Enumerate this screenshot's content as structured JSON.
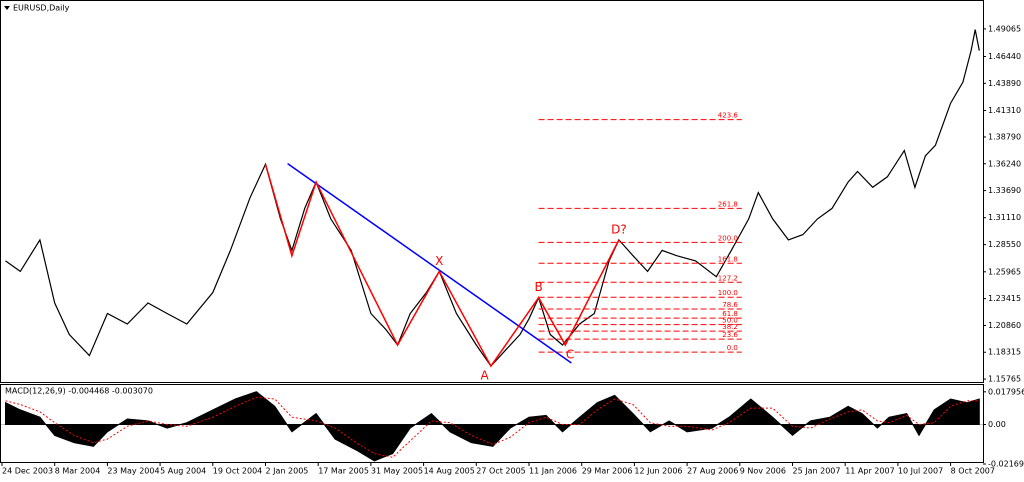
{
  "chart_data": [
    {
      "type": "line",
      "title": "EURUSD,Daily",
      "ylim": [
        1.1539,
        1.5172
      ],
      "yticks": [
        1.49065,
        {
          "value": 1.4644,
          "label": "1.46440"
        },
        {
          "value": 1.4389,
          "label": "1.43890"
        },
        {
          "value": 1.4131,
          "label": "1.41310"
        },
        {
          "value": 1.3879,
          "label": "1.38790"
        },
        {
          "value": 1.3624,
          "label": "1.36240"
        },
        {
          "value": 1.3369,
          "label": "1.33690"
        },
        {
          "value": 1.3111,
          "label": "1.31110"
        },
        {
          "value": 1.2855,
          "label": "1.28550"
        },
        1.25965,
        1.23415,
        {
          "value": 1.2086,
          "label": "1.20860"
        },
        1.18315,
        1.15765
      ],
      "xticks": [
        {
          "value": "2003-12-24",
          "label": "24 Dec 2003"
        },
        {
          "value": "2004-03-08",
          "label": "8 Mar 2004"
        },
        {
          "value": "2004-05-23",
          "label": "23 May 2004"
        },
        {
          "value": "2004-08-05",
          "label": "5 Aug 2004"
        },
        {
          "value": "2004-10-19",
          "label": "19 Oct 2004"
        },
        {
          "value": "2005-01-02",
          "label": "2 Jan 2005"
        },
        {
          "value": "2005-03-17",
          "label": "17 Mar 2005"
        },
        {
          "value": "2005-05-31",
          "label": "31 May 2005"
        },
        {
          "value": "2005-08-14",
          "label": "14 Aug 2005"
        },
        {
          "value": "2005-10-27",
          "label": "27 Oct 2005"
        },
        {
          "value": "2006-01-11",
          "label": "11 Jan 2006"
        },
        {
          "value": "2006-03-29",
          "label": "29 Mar 2006"
        },
        {
          "value": "2006-06-12",
          "label": "12 Jun 2006"
        },
        {
          "value": "2006-08-27",
          "label": "27 Aug 2006"
        },
        {
          "value": "2006-11-09",
          "label": "9 Nov 2006"
        },
        {
          "value": "2007-01-25",
          "label": "25 Jan 2007"
        },
        {
          "value": "2007-04-11",
          "label": "11 Apr 2007"
        },
        {
          "value": "2007-07-10",
          "label": "10 Jul 2007"
        },
        {
          "value": "2007-10-08",
          "label": "8 Oct 2007"
        }
      ],
      "x": [
        "2003-12-29",
        "2004-01-19",
        "2004-02-16",
        "2004-03-08",
        "2004-03-29",
        "2004-04-27",
        "2004-05-23",
        "2004-06-20",
        "2004-07-19",
        "2004-08-15",
        "2004-09-12",
        "2004-10-19",
        "2004-11-13",
        "2004-12-11",
        "2005-01-02",
        "2005-01-23",
        "2005-02-08",
        "2005-02-26",
        "2005-03-14",
        "2005-04-04",
        "2005-05-03",
        "2005-05-31",
        "2005-06-21",
        "2005-07-08",
        "2005-07-26",
        "2005-08-18",
        "2005-09-05",
        "2005-09-29",
        "2005-10-27",
        "2005-11-17",
        "2005-12-08",
        "2005-12-29",
        "2006-01-11",
        "2006-01-25",
        "2006-02-11",
        "2006-03-01",
        "2006-03-26",
        "2006-04-16",
        "2006-05-07",
        "2006-05-21",
        "2006-06-10",
        "2006-07-01",
        "2006-07-22",
        "2006-08-12",
        "2006-09-08",
        "2006-10-07",
        "2006-10-28",
        "2006-11-22",
        "2006-12-06",
        "2006-12-27",
        "2007-01-19",
        "2007-02-09",
        "2007-03-02",
        "2007-03-23",
        "2007-04-16",
        "2007-05-02",
        "2007-05-28",
        "2007-06-22",
        "2007-07-21",
        "2007-08-08",
        "2007-08-26",
        "2007-09-12",
        "2007-10-08",
        "2007-10-29",
        "2007-11-12",
        "2007-11-19",
        "2007-11-26"
      ],
      "series": [
        {
          "color": "#000000",
          "values": [
            1.27,
            1.26,
            1.29,
            1.23,
            1.2,
            1.18,
            1.22,
            1.21,
            1.23,
            1.22,
            1.21,
            1.24,
            1.28,
            1.33,
            1.362,
            1.31,
            1.28,
            1.32,
            1.345,
            1.31,
            1.28,
            1.22,
            1.205,
            1.19,
            1.22,
            1.24,
            1.26,
            1.22,
            1.19,
            1.17,
            1.185,
            1.2,
            1.215,
            1.235,
            1.2,
            1.19,
            1.21,
            1.22,
            1.27,
            1.29,
            1.275,
            1.26,
            1.28,
            1.275,
            1.27,
            1.255,
            1.28,
            1.31,
            1.335,
            1.31,
            1.29,
            1.295,
            1.31,
            1.32,
            1.345,
            1.355,
            1.34,
            1.35,
            1.375,
            1.34,
            1.37,
            1.38,
            1.42,
            1.44,
            1.47,
            1.49,
            1.47
          ]
        }
      ],
      "lines": [
        {
          "color": "#0000ff",
          "x": [
            "2005-02-02",
            "2006-03-14"
          ],
          "values": [
            1.3626,
            1.1729
          ]
        },
        {
          "color": "#ff0000",
          "x": [
            "2005-01-02",
            "2005-02-08",
            "2005-03-14",
            "2005-07-08",
            "2005-09-05",
            "2005-11-17",
            "2006-01-25",
            "2006-03-05",
            "2006-05-21"
          ],
          "values": [
            1.362,
            1.275,
            1.345,
            1.19,
            1.26,
            1.17,
            1.235,
            1.19,
            1.29
          ]
        }
      ],
      "fibonacci": {
        "color": "#ff0000",
        "x": [
          "2006-01-25",
          "2006-11-12"
        ],
        "price_0": 1.1833,
        "price_100": 1.2355,
        "levels": [
          {
            "value": 0,
            "label": "0.0"
          },
          23.6,
          38.2,
          {
            "value": 50,
            "label": "50.0"
          },
          61.8,
          78.6,
          {
            "value": 100,
            "label": "100.0"
          },
          127.2,
          161.8,
          {
            "value": 200,
            "label": "200.0"
          },
          261.8,
          423.6
        ]
      },
      "annotations": [
        {
          "text": "X",
          "x": "2005-09-05",
          "y": 1.26,
          "position": "above"
        },
        {
          "text": "A",
          "x": "2005-11-08",
          "y": 1.17,
          "position": "below"
        },
        {
          "text": "B",
          "x": "2006-01-25",
          "y": 1.235,
          "position": "above"
        },
        {
          "text": "C",
          "x": "2006-03-12",
          "y": 1.19,
          "position": "below"
        },
        {
          "text": "D?",
          "x": "2006-05-21",
          "y": 1.29,
          "position": "above"
        }
      ]
    },
    {
      "type": "macd",
      "title": "MACD(12,26,9) -0.004468 -0.003070",
      "ylim": [
        -0.0206,
        0.0217
      ],
      "yticks": [
        0.017956,
        {
          "value": 0,
          "label": "0.00"
        },
        -0.021694
      ],
      "x": [
        "2003-12-29",
        "2004-01-19",
        "2004-02-16",
        "2004-03-08",
        "2004-04-05",
        "2004-05-03",
        "2004-05-23",
        "2004-06-20",
        "2004-07-19",
        "2004-08-15",
        "2004-09-12",
        "2004-10-19",
        "2004-11-20",
        "2004-12-20",
        "2005-01-15",
        "2005-02-08",
        "2005-03-14",
        "2005-04-10",
        "2005-05-10",
        "2005-06-05",
        "2005-07-01",
        "2005-07-26",
        "2005-08-25",
        "2005-09-20",
        "2005-10-20",
        "2005-11-20",
        "2005-12-15",
        "2006-01-11",
        "2006-02-05",
        "2006-03-01",
        "2006-03-26",
        "2006-04-20",
        "2006-05-15",
        "2006-06-10",
        "2006-07-05",
        "2006-08-01",
        "2006-08-27",
        "2006-10-01",
        "2006-10-25",
        "2006-11-25",
        "2006-12-27",
        "2007-01-25",
        "2007-02-20",
        "2007-03-20",
        "2007-04-16",
        "2007-05-10",
        "2007-06-05",
        "2007-06-25",
        "2007-07-25",
        "2007-08-15",
        "2007-09-10",
        "2007-10-08",
        "2007-11-05",
        "2007-11-26"
      ],
      "series": [
        {
          "color": "#000000",
          "values": [
            0.012,
            0.008,
            0.004,
            -0.006,
            -0.01,
            -0.012,
            -0.004,
            0.003,
            0.002,
            -0.002,
            0.001,
            0.008,
            0.014,
            0.018,
            0.01,
            -0.004,
            0.006,
            -0.008,
            -0.014,
            -0.02,
            -0.016,
            -0.002,
            0.006,
            -0.004,
            -0.01,
            -0.012,
            -0.002,
            0.004,
            0.005,
            -0.004,
            0.004,
            0.012,
            0.016,
            0.006,
            -0.004,
            0.002,
            -0.004,
            -0.002,
            0.004,
            0.014,
            0.004,
            -0.006,
            0.002,
            0.004,
            0.01,
            0.006,
            -0.002,
            0.004,
            0.006,
            -0.006,
            0.008,
            0.014,
            0.012,
            0.014
          ]
        },
        {
          "color": "#ff0000",
          "values": [
            0.013,
            0.011,
            0.007,
            0.001,
            -0.006,
            -0.01,
            -0.008,
            -0.001,
            0.002,
            0.0,
            -0.001,
            0.004,
            0.01,
            0.015,
            0.014,
            0.004,
            0.002,
            -0.002,
            -0.01,
            -0.016,
            -0.018,
            -0.009,
            0.002,
            0.001,
            -0.006,
            -0.011,
            -0.007,
            0.001,
            0.004,
            0.0,
            0.0,
            0.008,
            0.014,
            0.011,
            0.001,
            -0.001,
            -0.001,
            -0.003,
            0.001,
            0.009,
            0.009,
            -0.001,
            -0.002,
            0.003,
            0.007,
            0.008,
            0.002,
            0.001,
            0.005,
            0.0,
            0.001,
            0.01,
            0.013,
            0.013
          ]
        }
      ]
    }
  ]
}
